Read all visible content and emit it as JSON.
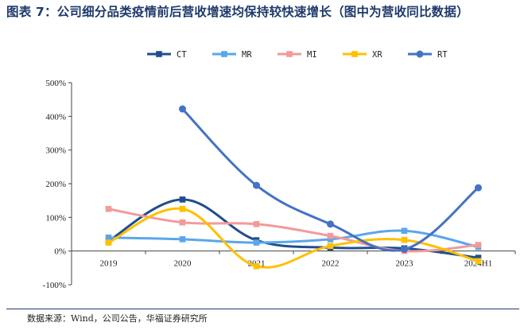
{
  "title": "图表 7：公司细分品类疫情前后营收增速均保持较快速增长（图中为营收同比数据）",
  "source": "数据来源：Wind，公司公告，华福证券研究所",
  "chart_data": {
    "type": "line",
    "smooth": true,
    "categories": [
      "2019",
      "2020",
      "2021",
      "2022",
      "2023",
      "2024H1"
    ],
    "y_ticks": [
      "-100%",
      "0%",
      "100%",
      "200%",
      "300%",
      "400%",
      "500%"
    ],
    "ylim": [
      -100,
      500
    ],
    "legend_position": "top",
    "series": [
      {
        "name": "CT",
        "color": "#1f4e8c",
        "marker": "square",
        "values": [
          30,
          153,
          32,
          10,
          8,
          -20
        ]
      },
      {
        "name": "MR",
        "color": "#5aa6ec",
        "marker": "square",
        "values": [
          40,
          35,
          25,
          35,
          60,
          12
        ]
      },
      {
        "name": "MI",
        "color": "#f29a9a",
        "marker": "square",
        "values": [
          125,
          85,
          80,
          45,
          0,
          18
        ]
      },
      {
        "name": "XR",
        "color": "#ffc000",
        "marker": "square",
        "values": [
          25,
          125,
          -45,
          15,
          33,
          -30
        ]
      },
      {
        "name": "RT",
        "color": "#4472c4",
        "marker": "circle",
        "values": [
          null,
          422,
          195,
          80,
          5,
          188
        ]
      }
    ]
  }
}
